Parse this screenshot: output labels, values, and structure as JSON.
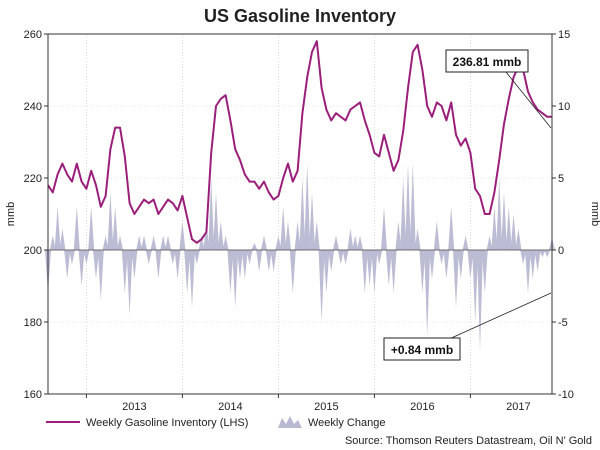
{
  "chart_data": {
    "type": "line",
    "title": "US Gasoline Inventory",
    "source": "Source: Thomson Reuters Datastream, Oil N' Gold",
    "left_axis": {
      "label": "mmb",
      "ylim": [
        160,
        260
      ],
      "ticks": [
        160,
        180,
        200,
        220,
        240,
        260
      ]
    },
    "right_axis": {
      "label": "mmb",
      "ylim": [
        -10,
        15
      ],
      "ticks": [
        -10,
        -5,
        0,
        5,
        10,
        15
      ]
    },
    "x_axis": {
      "ticks": [
        "2013",
        "2014",
        "2015",
        "2016",
        "2017"
      ],
      "xlim": [
        2012.6,
        2017.85
      ]
    },
    "grid": true,
    "legend_position": "bottom",
    "colors": {
      "line": "#9b1f7a",
      "bars": "#b8b8d2"
    },
    "series": [
      {
        "name": "Weekly Gasoline Inventory (LHS)",
        "type": "line",
        "axis": "left",
        "x": [
          2012.6,
          2012.65,
          2012.7,
          2012.75,
          2012.8,
          2012.85,
          2012.9,
          2012.95,
          2013.0,
          2013.05,
          2013.1,
          2013.15,
          2013.2,
          2013.25,
          2013.3,
          2013.35,
          2013.4,
          2013.45,
          2013.5,
          2013.55,
          2013.6,
          2013.65,
          2013.7,
          2013.75,
          2013.8,
          2013.85,
          2013.9,
          2013.95,
          2014.0,
          2014.05,
          2014.1,
          2014.15,
          2014.2,
          2014.25,
          2014.3,
          2014.35,
          2014.4,
          2014.45,
          2014.5,
          2014.55,
          2014.6,
          2014.65,
          2014.7,
          2014.75,
          2014.8,
          2014.85,
          2014.9,
          2014.95,
          2015.0,
          2015.05,
          2015.1,
          2015.15,
          2015.2,
          2015.25,
          2015.3,
          2015.35,
          2015.4,
          2015.45,
          2015.5,
          2015.55,
          2015.6,
          2015.65,
          2015.7,
          2015.75,
          2015.8,
          2015.85,
          2015.9,
          2015.95,
          2016.0,
          2016.05,
          2016.1,
          2016.15,
          2016.2,
          2016.25,
          2016.3,
          2016.35,
          2016.4,
          2016.45,
          2016.5,
          2016.55,
          2016.6,
          2016.65,
          2016.7,
          2016.75,
          2016.8,
          2016.85,
          2016.9,
          2016.95,
          2017.0,
          2017.05,
          2017.1,
          2017.15,
          2017.2,
          2017.25,
          2017.3,
          2017.35,
          2017.4,
          2017.45,
          2017.5,
          2017.55,
          2017.6,
          2017.65,
          2017.7,
          2017.75,
          2017.8,
          2017.85
        ],
        "values": [
          218,
          216,
          221,
          224,
          221,
          219,
          224,
          219,
          217,
          222,
          218,
          212,
          215,
          228,
          234,
          234,
          226,
          213,
          210,
          212,
          214,
          213,
          214,
          210,
          212,
          214,
          213,
          211,
          215,
          209,
          203,
          202,
          203,
          205,
          227,
          240,
          242,
          243,
          236,
          228,
          225,
          221,
          219,
          219,
          217,
          219,
          216,
          214,
          215,
          220,
          224,
          219,
          222,
          238,
          248,
          255,
          258,
          245,
          239,
          236,
          238,
          237,
          236,
          239,
          240,
          241,
          236,
          232,
          227,
          226,
          232,
          227,
          222,
          225,
          233,
          245,
          255,
          257,
          250,
          240,
          237,
          241,
          240,
          236,
          241,
          232,
          229,
          231,
          227,
          217,
          215,
          210,
          210,
          216,
          225,
          235,
          242,
          248,
          251,
          250,
          244,
          241,
          239,
          238,
          237,
          237
        ]
      },
      {
        "name": "Weekly Change",
        "type": "area",
        "axis": "right",
        "x": [
          2012.6,
          2012.65,
          2012.7,
          2012.75,
          2012.8,
          2012.85,
          2012.9,
          2012.95,
          2013.0,
          2013.05,
          2013.1,
          2013.15,
          2013.2,
          2013.25,
          2013.3,
          2013.35,
          2013.4,
          2013.45,
          2013.5,
          2013.55,
          2013.6,
          2013.65,
          2013.7,
          2013.75,
          2013.8,
          2013.85,
          2013.9,
          2013.95,
          2014.0,
          2014.05,
          2014.1,
          2014.15,
          2014.2,
          2014.25,
          2014.3,
          2014.35,
          2014.4,
          2014.45,
          2014.5,
          2014.55,
          2014.6,
          2014.65,
          2014.7,
          2014.75,
          2014.8,
          2014.85,
          2014.9,
          2014.95,
          2015.0,
          2015.05,
          2015.1,
          2015.15,
          2015.2,
          2015.25,
          2015.3,
          2015.35,
          2015.4,
          2015.45,
          2015.5,
          2015.55,
          2015.6,
          2015.65,
          2015.7,
          2015.75,
          2015.8,
          2015.85,
          2015.9,
          2015.95,
          2016.0,
          2016.05,
          2016.1,
          2016.15,
          2016.2,
          2016.25,
          2016.3,
          2016.35,
          2016.4,
          2016.45,
          2016.5,
          2016.55,
          2016.6,
          2016.65,
          2016.7,
          2016.75,
          2016.8,
          2016.85,
          2016.9,
          2016.95,
          2017.0,
          2017.05,
          2017.1,
          2017.15,
          2017.2,
          2017.25,
          2017.3,
          2017.35,
          2017.4,
          2017.45,
          2017.5,
          2017.55,
          2017.6,
          2017.65,
          2017.7,
          2017.75,
          2017.8,
          2017.85
        ],
        "values": [
          -3,
          1,
          3,
          1.5,
          -2,
          -1,
          3,
          -2.5,
          -1,
          3,
          -2,
          -3.5,
          1,
          4,
          3,
          1,
          -3,
          -4.5,
          -2,
          1,
          1,
          -1,
          1,
          -2,
          1,
          1,
          -1,
          -2,
          2,
          -3,
          -4,
          -1,
          1,
          2,
          5,
          4,
          2,
          1,
          -3,
          -4,
          -2,
          -2,
          -1,
          0.5,
          -1.5,
          1,
          -1.5,
          -1.5,
          1,
          3,
          2,
          -3,
          2,
          5,
          6,
          4,
          2,
          -5,
          -3,
          -1.5,
          1,
          -1,
          -1,
          1.5,
          1,
          1,
          -3,
          -2.5,
          -3,
          -1,
          3,
          -2.5,
          -3,
          2,
          5,
          6,
          6,
          1.5,
          -3,
          -6,
          -2,
          2,
          -1,
          -2,
          3,
          -4,
          -2,
          1,
          -2,
          -5,
          -7,
          -3,
          1,
          3,
          5,
          4,
          3,
          2.5,
          1.5,
          -1,
          -3,
          -2,
          -1.5,
          -0.5,
          -0.5,
          0.84
        ]
      }
    ],
    "annotations": [
      {
        "text": "236.81 mmb",
        "points_to": "series-0-end"
      },
      {
        "text": "+0.84 mmb",
        "points_to": "series-1-end"
      }
    ]
  }
}
